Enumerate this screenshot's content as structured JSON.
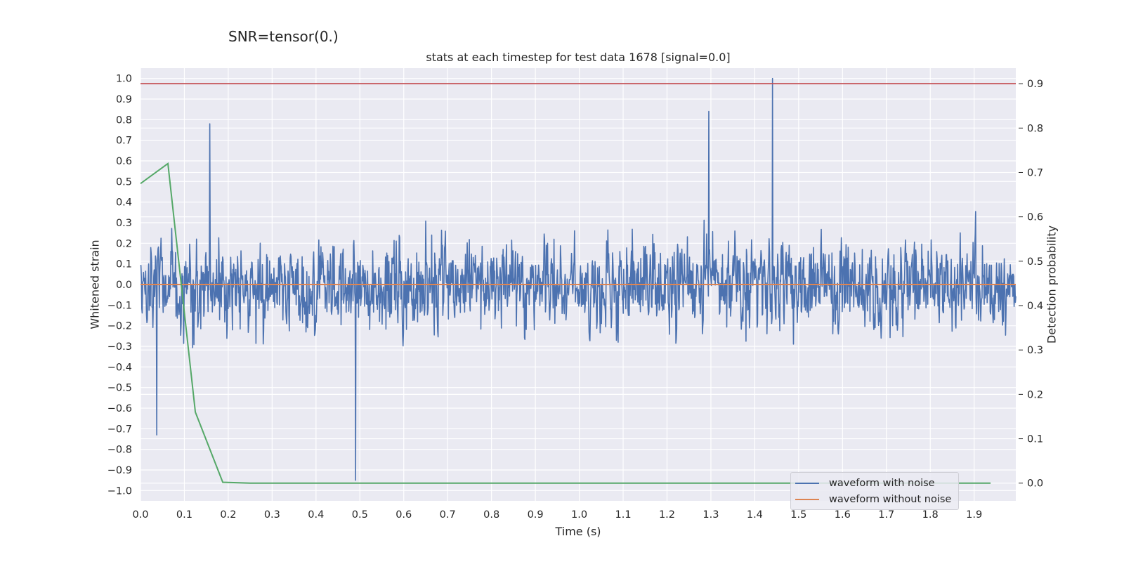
{
  "suptitle": "SNR=tensor(0.)",
  "chart_data": {
    "type": "line",
    "title": "stats at each timestep for test data 1678 [signal=0.0]",
    "xlabel": "Time (s)",
    "ylabel": "Whitened strain",
    "y2label": "Detection probability",
    "xlim": [
      0.0,
      1.995
    ],
    "ylim": [
      -1.05,
      1.05
    ],
    "y2lim": [
      -0.04,
      0.935
    ],
    "xticks": [
      "0.0",
      "0.1",
      "0.2",
      "0.3",
      "0.4",
      "0.5",
      "0.6",
      "0.7",
      "0.8",
      "0.9",
      "1.0",
      "1.1",
      "1.2",
      "1.3",
      "1.4",
      "1.5",
      "1.6",
      "1.7",
      "1.8",
      "1.9"
    ],
    "yticks": [
      "1.0",
      "0.9",
      "0.8",
      "0.7",
      "0.6",
      "0.5",
      "0.4",
      "0.3",
      "0.2",
      "0.1",
      "0.0",
      "−0.1",
      "−0.2",
      "−0.3",
      "−0.4",
      "−0.5",
      "−0.6",
      "−0.7",
      "−0.8",
      "−0.9",
      "−1.0"
    ],
    "y2ticks": [
      "0.9",
      "0.8",
      "0.7",
      "0.6",
      "0.5",
      "0.4",
      "0.3",
      "0.2",
      "0.1",
      "0.0"
    ],
    "grid": true,
    "legend_position": "lower-right",
    "series": [
      {
        "name": "waveform with noise",
        "axis": "left",
        "color": "#4c72b0",
        "description_peaks": [
          {
            "x": 0.158,
            "y": 0.78
          },
          {
            "x": 0.49,
            "y": -0.95
          },
          {
            "x": 1.295,
            "y": 0.84
          },
          {
            "x": 1.44,
            "y": 1.0
          },
          {
            "x": 0.037,
            "y": -0.73
          }
        ],
        "noise_amplitude": 0.25
      },
      {
        "name": "waveform without noise",
        "axis": "left",
        "color": "#dd8452",
        "x": [
          0.0,
          1.995
        ],
        "y": [
          0.0,
          0.0
        ]
      },
      {
        "name": "Detection probability",
        "axis": "right",
        "color": "#55a868",
        "x": [
          0.0,
          0.0625,
          0.125,
          0.1875,
          0.25,
          0.5,
          1.0,
          1.5,
          1.9375
        ],
        "y": [
          0.675,
          0.72,
          0.16,
          0.002,
          0.0,
          0.0,
          0.0,
          0.0,
          0.0
        ]
      }
    ],
    "threshold": {
      "axis": "right",
      "y": 0.9,
      "color": "#c44e52"
    }
  }
}
